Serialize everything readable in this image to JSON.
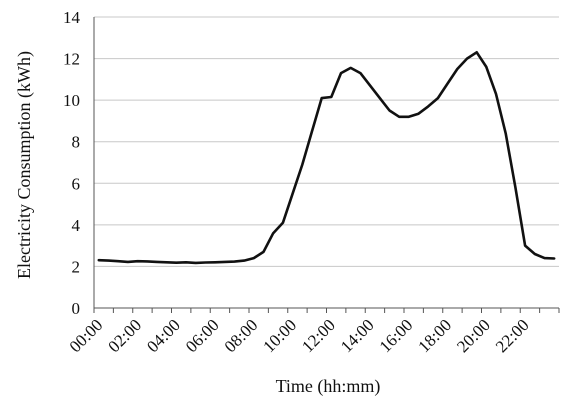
{
  "chart_data": {
    "type": "line",
    "title": "",
    "xlabel": "Time (hh:mm)",
    "ylabel": "Electricity Consumption (kWh)",
    "ylim": [
      0,
      14
    ],
    "yticks": [
      "0",
      "2",
      "4",
      "6",
      "8",
      "10",
      "12",
      "14"
    ],
    "xticks": [
      "00:00",
      "02:00",
      "04:00",
      "06:00",
      "08:00",
      "10:00",
      "12:00",
      "14:00",
      "16:00",
      "18:00",
      "20:00",
      "22:00"
    ],
    "grid": true,
    "legend": "none",
    "line_color": "#111111",
    "series": [
      {
        "x": [
          0,
          0.5,
          1,
          1.5,
          2,
          2.5,
          3,
          3.5,
          4,
          4.5,
          5,
          5.5,
          6,
          6.5,
          7,
          7.5,
          8,
          8.5,
          9,
          9.5,
          10,
          10.5,
          11,
          11.5,
          12,
          12.5,
          13,
          13.5,
          14,
          14.5,
          15,
          15.5,
          16,
          16.5,
          17,
          17.5,
          18,
          18.5,
          19,
          19.5,
          20,
          20.5,
          21,
          21.5,
          22,
          22.5,
          23,
          23.5
        ],
        "values": [
          2.3,
          2.28,
          2.25,
          2.22,
          2.25,
          2.24,
          2.22,
          2.2,
          2.18,
          2.2,
          2.17,
          2.19,
          2.2,
          2.22,
          2.23,
          2.28,
          2.4,
          2.7,
          3.6,
          4.1,
          5.5,
          6.9,
          8.5,
          10.1,
          10.15,
          11.3,
          11.55,
          11.3,
          10.7,
          10.1,
          9.5,
          9.2,
          9.2,
          9.35,
          9.7,
          10.1,
          10.8,
          11.5,
          12.0,
          12.3,
          11.6,
          10.3,
          8.4,
          5.8,
          3.0,
          2.6,
          2.4,
          2.38
        ]
      }
    ]
  }
}
